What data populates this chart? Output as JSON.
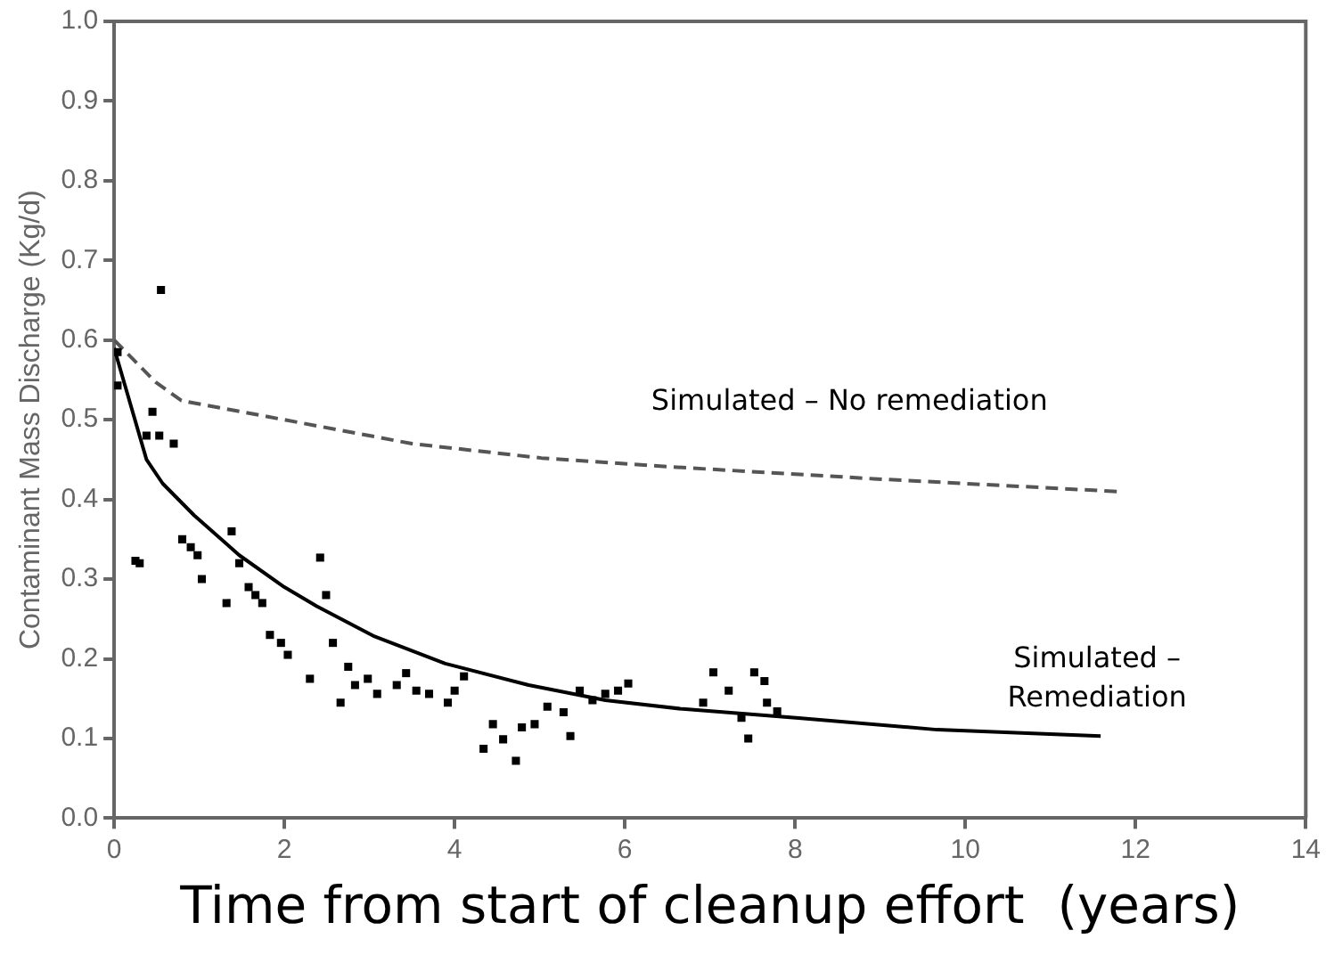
{
  "chart_data": {
    "type": "scatter",
    "xlabel": "Time from start of cleanup effort  (years)",
    "ylabel": "Contaminant Mass Discharge (Kg/d)",
    "xlim": [
      0,
      14
    ],
    "xticks": [
      0,
      2,
      4,
      6,
      8,
      10,
      12,
      14
    ],
    "ylim": [
      0,
      1
    ],
    "yticks": [
      {
        "value": 0,
        "label": "0.0"
      },
      0.1,
      0.2,
      0.3,
      0.4,
      0.5,
      0.6,
      0.7,
      0.8,
      0.9,
      {
        "value": 1,
        "label": "1.0"
      }
    ],
    "grid": false,
    "legend": false,
    "series": [
      {
        "color": "#000000",
        "marker": "square",
        "x": [
          0.04,
          0.04,
          0.25,
          0.3,
          0.45,
          0.38,
          0.53,
          0.7,
          0.55,
          0.8,
          0.9,
          0.98,
          1.03,
          1.32,
          1.38,
          1.47,
          1.58,
          1.66,
          1.74,
          1.83,
          1.96,
          2.04,
          2.3,
          2.42,
          2.49,
          2.57,
          2.66,
          2.75,
          2.83,
          2.98,
          3.09,
          3.32,
          3.43,
          3.55,
          3.7,
          3.92,
          4.0,
          4.11,
          4.34,
          4.45,
          4.57,
          4.72,
          4.79,
          4.94,
          5.09,
          5.28,
          5.36,
          5.47,
          5.62,
          5.77,
          5.92,
          6.04,
          6.92,
          7.04,
          7.22,
          7.37,
          7.45,
          7.52,
          7.64,
          7.67,
          7.79
        ],
        "values": [
          0.585,
          0.543,
          0.323,
          0.32,
          0.51,
          0.48,
          0.48,
          0.47,
          0.663,
          0.35,
          0.34,
          0.33,
          0.3,
          0.27,
          0.36,
          0.32,
          0.29,
          0.28,
          0.27,
          0.23,
          0.22,
          0.205,
          0.175,
          0.327,
          0.28,
          0.22,
          0.145,
          0.19,
          0.167,
          0.175,
          0.156,
          0.167,
          0.182,
          0.16,
          0.156,
          0.145,
          0.16,
          0.178,
          0.087,
          0.118,
          0.099,
          0.072,
          0.114,
          0.118,
          0.14,
          0.133,
          0.103,
          0.16,
          0.148,
          0.156,
          0.16,
          0.169,
          0.145,
          0.183,
          0.16,
          0.126,
          0.1,
          0.183,
          0.172,
          0.145,
          0.134
        ]
      },
      {
        "type": "line",
        "name": "Simulated – Remediation",
        "color": "#000000",
        "marker": "none",
        "line_style": "solid",
        "x": [
          0,
          0.38,
          0.57,
          0.94,
          1.47,
          2.0,
          2.38,
          3.06,
          3.89,
          4.87,
          5.77,
          6.68,
          8.01,
          9.67,
          11.59
        ],
        "values": [
          0.59,
          0.45,
          0.42,
          0.38,
          0.33,
          0.29,
          0.266,
          0.228,
          0.194,
          0.167,
          0.148,
          0.137,
          0.126,
          0.111,
          0.103
        ]
      },
      {
        "type": "line",
        "name": "Simulated – No remediation",
        "color": "#555555",
        "marker": "none",
        "line_style": "dashed",
        "x": [
          0,
          0.49,
          0.79,
          2.0,
          3.5,
          5.02,
          6.68,
          8.92,
          11.78
        ],
        "values": [
          0.6,
          0.547,
          0.524,
          0.5,
          0.47,
          0.452,
          0.44,
          0.426,
          0.41
        ]
      }
    ]
  }
}
